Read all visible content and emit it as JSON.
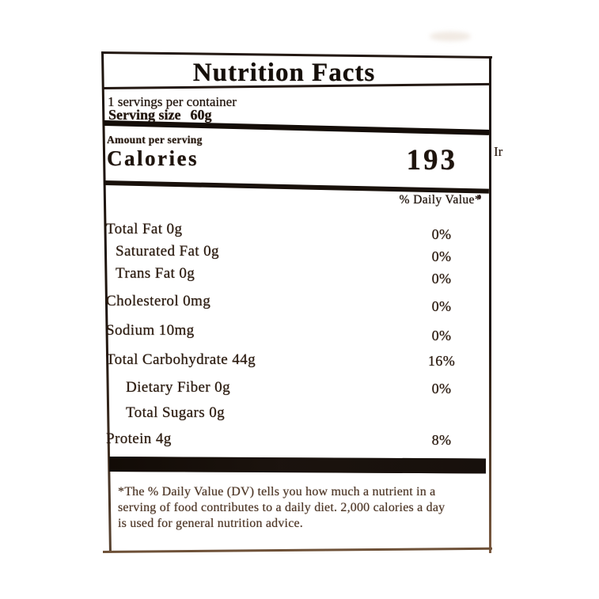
{
  "colors": {
    "ink": "#22160e",
    "ink_footnote": "#4e3727",
    "bar": "#17100c",
    "border_bottom": "#6e5138",
    "paper": "#ffffff"
  },
  "label": {
    "title": "Nutrition Facts",
    "servings_per_container": "1 servings per container",
    "serving_size": {
      "label": "Serving size",
      "value": "60g"
    },
    "amount_per_serving": "Amount per serving",
    "calories": {
      "label": "Calories",
      "value": "193"
    },
    "daily_value_header": "% Daily Value*",
    "nutrients": [
      {
        "name": "Total Fat 0g",
        "daily_value": "0%",
        "indent": 0
      },
      {
        "name": "Saturated Fat 0g",
        "daily_value": "0%",
        "indent": 1
      },
      {
        "name": "Trans Fat 0g",
        "daily_value": "0%",
        "indent": 1
      },
      {
        "name": "Cholesterol 0mg",
        "daily_value": "0%",
        "indent": 0
      },
      {
        "name": "Sodium 10mg",
        "daily_value": "0%",
        "indent": 0
      },
      {
        "name": "Total Carbohydrate 44g",
        "daily_value": "16%",
        "indent": 0
      },
      {
        "name": "Dietary Fiber 0g",
        "daily_value": "0%",
        "indent": 2
      },
      {
        "name": "Total Sugars 0g",
        "daily_value": "",
        "indent": 2
      },
      {
        "name": "Protein 4g",
        "daily_value": "8%",
        "indent": 0
      }
    ],
    "footnote_lines": [
      "*The % Daily Value (DV) tells you how much a nutrient in a",
      "serving of food contributes to a daily diet. 2,000 calories a day",
      "is used for general nutrition advice."
    ]
  },
  "background_text": {
    "stray_fragment": "Ir"
  }
}
